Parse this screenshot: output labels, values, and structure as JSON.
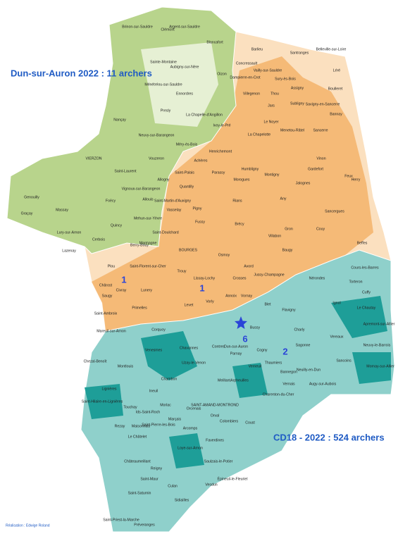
{
  "header": {
    "title_north": "Dun-sur-Auron 2022 : 11 archers",
    "title_south": "CD18 - 2022 : 524 archers",
    "credit": "Réalisation : Edwige Roland"
  },
  "archer_counts": [
    1,
    1,
    6,
    2
  ],
  "communes": [
    "Brinon-sur-Sauldre",
    "Clémont",
    "Argent-sur-Sauldre",
    "Blancafort",
    "Sainte-Montaine",
    "Aubigny-sur-Nère",
    "Ménétréou-sur-Sauldre",
    "Oizon",
    "Ennordres",
    "Presly",
    "La Chapelle-d'Angillon",
    "Ivoy-le-Pré",
    "Nançay",
    "Neuvy-sur-Barangeon",
    "Méry-ès-Bois",
    "Vouzeron",
    "Saint-Laurent",
    "VIERZON",
    "Genouilly",
    "Graçay",
    "Massay",
    "Vignoux-sur-Barangeon",
    "Allouis",
    "Foëcy",
    "Mehun-sur-Yèvre",
    "Lury-sur-Arnon",
    "Quincy",
    "Cerbois",
    "Lazenay",
    "Berry-Bouy",
    "Concressault",
    "Barlieu",
    "Vailly-sur-Sauldre",
    "Santranges",
    "Belleville-sur-Loire",
    "Léré",
    "Sury-ès-Bois",
    "Dampierre-en-Crot",
    "Villegenon",
    "Thou",
    "Assigny",
    "Boulleret",
    "Jars",
    "Subligny",
    "Savigny-en-Sancerre",
    "Bannay",
    "La Chapelotte",
    "Le Noyer",
    "Sancerre",
    "Menetou-Râtel",
    "Henrichemont",
    "Achères",
    "Vinon",
    "Humbligny",
    "Morogues",
    "Allogny",
    "Parassy",
    "Quantilly",
    "Montigny",
    "Gardefort",
    "Feux",
    "Rians",
    "Any",
    "Jalognes",
    "Saint-Martin-d'Auxigny",
    "Saint-Palais",
    "Vasselay",
    "Pigny",
    "Fussy",
    "BOURGES",
    "Marmagne",
    "Saint-Doulchard",
    "Osmoy",
    "Brécy",
    "Villabon",
    "Baugy",
    "Gron",
    "Couy",
    "Herry",
    "Sancergues",
    "Beffes",
    "Avord",
    "Crosses",
    "Plou",
    "Chârost",
    "Lunery",
    "Saint-Florent-sur-Cher",
    "Trouy",
    "Lissay-Lochy",
    "Levet",
    "Vorly",
    "Annoix",
    "Vornay",
    "Civray",
    "Saugy",
    "Primelles",
    "Saint-Ambroix",
    "Chavannes",
    "Jussy-Champagne",
    "Nérondes",
    "Cours-les-Barres",
    "Cuffy",
    "Torteron",
    "Ignol",
    "Charly",
    "Flavigny",
    "Sagonne",
    "Sancoins",
    "Vereaux",
    "Bussy",
    "Blet",
    "Dun-sur-Auron",
    "Contres",
    "Parnay",
    "Cogny",
    "Thaumiers",
    "Bannegon",
    "Verneuil",
    "Lignières",
    "Montlouis",
    "Chezal-Benoît",
    "Mareuil-sur-Arnon",
    "Venesmes",
    "Corquoy",
    "Uzay-le-Venon",
    "Chambon",
    "Morlac",
    "Touchay",
    "Marçais",
    "Orcenais",
    "SAINT-AMAND-MONTROND",
    "Orval",
    "Colombiers",
    "Meillant",
    "Arpheuilles",
    "Charenton-du-Cher",
    "Vernais",
    "Coust",
    "Reigny",
    "Saint-Maur",
    "Culan",
    "Vesdun",
    "Sidiailles",
    "Saint-Saturnin",
    "Préveranges",
    "Saint-Priest-la-Marche",
    "Châteaumeillant",
    "Le Châtelet",
    "Ineuil",
    "Épineuil-le-Fleuriel",
    "Saulzais-le-Potier",
    "Ids-Saint-Roch",
    "Maisonnais",
    "Saint-Pierre-les-Bois",
    "Loye-sur-Arnon",
    "Arcomps",
    "Faverdines",
    "Neuilly-en-Dun",
    "Augy-sur-Aubois",
    "Mornay-sur-Allier",
    "Neuvy-le-Barrois",
    "Apremont-sur-Allier",
    "Le Chautay",
    "Saint-Hilaire-en-Lignières",
    "Rezay"
  ]
}
